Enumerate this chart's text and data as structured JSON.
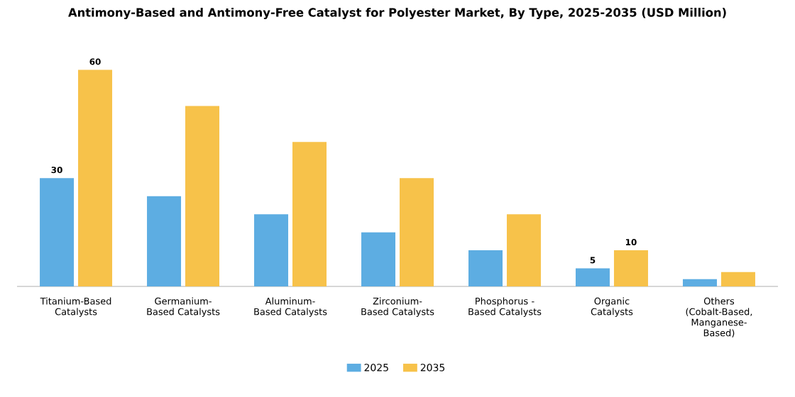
{
  "chart_data": {
    "type": "bar",
    "title": "Antimony-Based and Antimony-Free Catalyst for Polyester Market, By Type, 2025-2035 (USD Million)",
    "categories": [
      "Titanium-Based Catalysts",
      "Germanium-Based Catalysts",
      "Aluminum-Based Catalysts",
      "Zirconium-Based Catalysts",
      "Phosphorus -Based Catalysts",
      "Organic Catalysts",
      "Others (Cobalt-Based, Manganese-Based)"
    ],
    "series": [
      {
        "name": "2025",
        "color": "#5dade2",
        "values": [
          30,
          25,
          20,
          15,
          10,
          5,
          2
        ],
        "value_labels": [
          "30",
          null,
          null,
          null,
          null,
          "5",
          null
        ]
      },
      {
        "name": "2035",
        "color": "#f7c24a",
        "values": [
          60,
          50,
          40,
          30,
          20,
          10,
          4
        ],
        "value_labels": [
          "60",
          null,
          null,
          null,
          null,
          "10",
          null
        ]
      }
    ],
    "legend": "bottom"
  }
}
